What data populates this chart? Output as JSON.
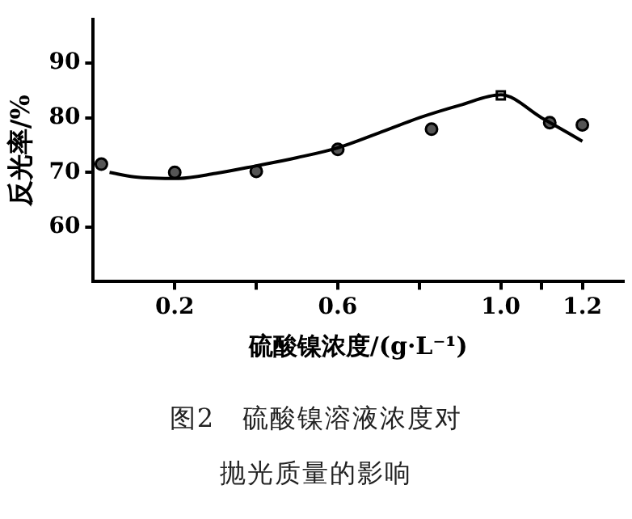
{
  "chart_data": {
    "type": "scatter",
    "xlabel": "硫酸镍浓度/(g·L⁻¹)",
    "ylabel": "反光率/%",
    "annotations": [
      "图2　硫酸镍溶液浓度对抛光质量的影响"
    ],
    "xlim": [
      0,
      1.3
    ],
    "xticks": [
      0.2,
      {
        "value": 0.4,
        "label": null
      },
      0.6,
      {
        "value": 0.8,
        "label": null
      },
      {
        "value": 1.0,
        "label": "1.0"
      },
      {
        "value": 1.1,
        "label": null
      },
      1.2
    ],
    "ylim": [
      50,
      98
    ],
    "yticks": [
      60,
      70,
      80,
      90
    ],
    "series": [
      {
        "type": "line",
        "color": "#000000",
        "marker": "none",
        "line_style": "solid",
        "x": [
          0.04,
          0.1,
          0.21,
          0.3,
          0.4,
          0.5,
          0.6,
          0.7,
          0.8,
          0.9,
          1.0,
          1.1,
          1.2
        ],
        "values": [
          70.0,
          69.2,
          68.9,
          69.8,
          71.2,
          72.7,
          74.5,
          77.2,
          80.0,
          82.3,
          84.2,
          80.0,
          75.7
        ]
      },
      {
        "type": "scatter",
        "color": "#000000",
        "marker": "circle",
        "x": [
          0.02,
          0.2,
          0.4,
          0.6,
          0.83,
          1.12,
          1.2
        ],
        "values": [
          71.5,
          70.0,
          70.2,
          74.2,
          77.9,
          79.1,
          78.7
        ]
      },
      {
        "type": "scatter",
        "color": "#000000",
        "marker": "square",
        "x": [
          1.0
        ],
        "values": [
          84.1
        ]
      }
    ]
  }
}
